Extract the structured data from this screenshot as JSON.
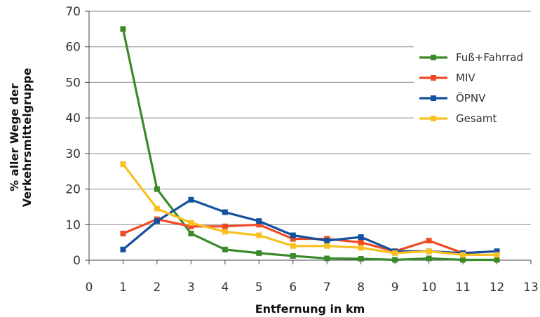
{
  "chart_data": {
    "type": "line",
    "xlabel": "Entfernung in km",
    "ylabel_lines": [
      "% aller Wege der",
      "Verkehrsmittelgruppe"
    ],
    "x": [
      1,
      2,
      3,
      4,
      5,
      6,
      7,
      8,
      9,
      10,
      11,
      12
    ],
    "xlim": [
      0,
      13
    ],
    "ylim": [
      0,
      70
    ],
    "xticks": [
      "0",
      "1",
      "2",
      "3",
      "4",
      "5",
      "6",
      "7",
      "8",
      "9",
      "10",
      "11",
      "12",
      "13"
    ],
    "yticks": [
      "0",
      "10",
      "20",
      "30",
      "40",
      "50",
      "60",
      "70"
    ],
    "grid": "horizontal",
    "legend_position": "right",
    "series": [
      {
        "name": "Fuß+Fahrrad",
        "color": "#3a8a2a",
        "values": [
          65,
          20,
          7.5,
          3,
          2,
          1.2,
          0.5,
          0.4,
          0.1,
          0.5,
          0.1,
          0.1
        ]
      },
      {
        "name": "MIV",
        "color": "#f04a23",
        "values": [
          7.5,
          11.5,
          9.5,
          9.5,
          10,
          6,
          6,
          5,
          2.5,
          5.5,
          2,
          2.5
        ]
      },
      {
        "name": "ÖPNV",
        "color": "#1450a0",
        "values": [
          3,
          11,
          17,
          13.5,
          11,
          7,
          5.5,
          6.5,
          2.5,
          2.5,
          2,
          2.5
        ]
      },
      {
        "name": "Gesamt",
        "color": "#f8c020",
        "values": [
          27,
          14.5,
          10.5,
          8,
          7,
          4,
          4,
          3.5,
          2,
          2.5,
          1.5,
          1.5
        ]
      }
    ]
  }
}
